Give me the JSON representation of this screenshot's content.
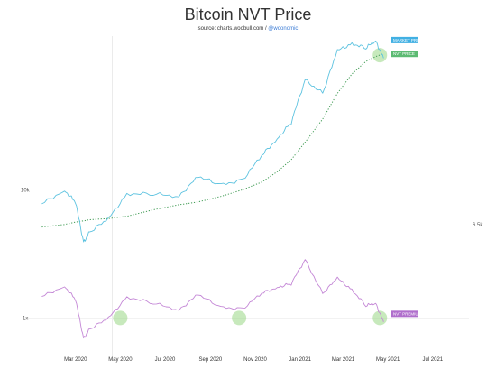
{
  "title": "Bitcoin NVT Price",
  "source": {
    "prefix": "source: charts.woobull.com /",
    "handle": "@woonomic"
  },
  "colors": {
    "market_price": "#5ec3e0",
    "nvt_price": "#3e9a52",
    "nvt_premium": "#c487d6",
    "market_tag": "#41b0e3",
    "nvt_tag": "#5dbb73",
    "premium_tag": "#b06fcc",
    "highlight": "#8fd47a",
    "grid": "#e6e6e6"
  },
  "chart_data": [
    {
      "type": "line",
      "title": "Bitcoin NVT Price",
      "scale": "log",
      "x": [
        "2020-01-15",
        "2020-02-15",
        "2020-03-01",
        "2020-03-12",
        "2020-03-20",
        "2020-04-15",
        "2020-05-10",
        "2020-06-15",
        "2020-07-20",
        "2020-08-15",
        "2020-09-15",
        "2020-10-15",
        "2020-11-10",
        "2020-12-01",
        "2020-12-20",
        "2021-01-08",
        "2021-02-01",
        "2021-02-21",
        "2021-03-13",
        "2021-04-01",
        "2021-04-14",
        "2021-04-25"
      ],
      "series": [
        {
          "name": "MARKET PRICE",
          "values": [
            8400,
            9900,
            8600,
            5200,
            5900,
            7000,
            9500,
            9500,
            9200,
            11800,
            10600,
            11300,
            15300,
            18800,
            23000,
            39000,
            33000,
            56000,
            61000,
            58000,
            63500,
            51000
          ]
        },
        {
          "name": "NVT PRICE",
          "values": [
            6300,
            6500,
            6700,
            6800,
            6900,
            7000,
            7200,
            7800,
            8300,
            8600,
            9200,
            10000,
            11000,
            12500,
            14500,
            18000,
            24000,
            33000,
            42000,
            49000,
            52000,
            54000
          ]
        }
      ],
      "y_tick_labels": [
        "10k",
        "6.5k"
      ],
      "x_tick_labels": [
        "Mar 2020",
        "May 2020",
        "Jul 2020",
        "Sep 2020",
        "Nov 2020",
        "Jan 2021",
        "Mar 2021",
        "May 2021",
        "Jul 2021"
      ],
      "legend": "right-side tags"
    },
    {
      "type": "line",
      "series": [
        {
          "name": "NVT PREMIUM",
          "values": [
            1.33,
            1.52,
            1.28,
            0.76,
            0.86,
            1.0,
            1.32,
            1.22,
            1.11,
            1.37,
            1.15,
            1.13,
            1.39,
            1.5,
            1.58,
            2.17,
            1.38,
            1.7,
            1.45,
            1.18,
            1.22,
            0.95
          ]
        }
      ],
      "y_tick_labels": [
        "1x"
      ]
    }
  ],
  "annotations": {
    "tags": [
      "MARKET PRICE",
      "NVT PRICE",
      "NVT PREMIUM"
    ]
  }
}
